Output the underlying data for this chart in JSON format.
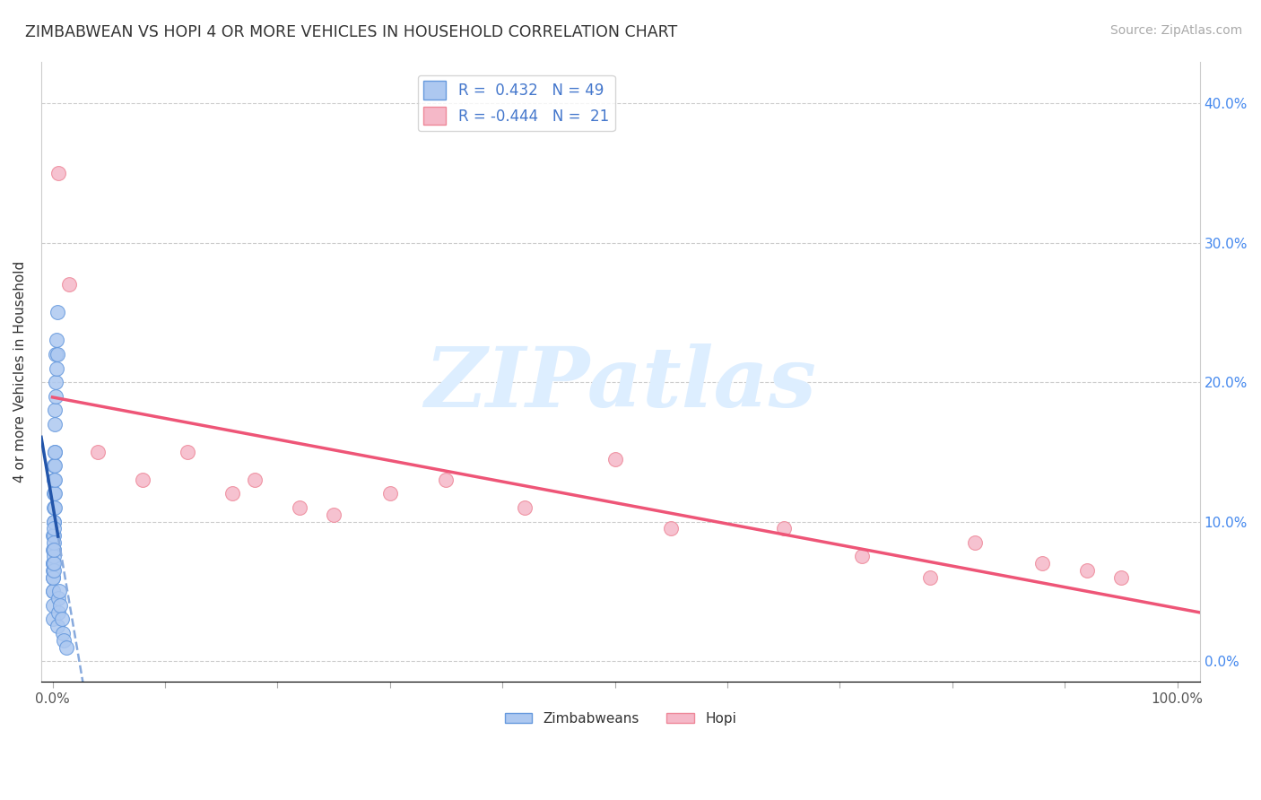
{
  "title": "ZIMBABWEAN VS HOPI 4 OR MORE VEHICLES IN HOUSEHOLD CORRELATION CHART",
  "source": "Source: ZipAtlas.com",
  "ylabel": "4 or more Vehicles in Household",
  "zimbabwean_R": 0.432,
  "zimbabwean_N": 49,
  "hopi_R": -0.444,
  "hopi_N": 21,
  "xlim": [
    -1.0,
    102.0
  ],
  "ylim": [
    -1.5,
    43.0
  ],
  "yticks": [
    0,
    10,
    20,
    30,
    40
  ],
  "background_color": "#ffffff",
  "grid_color": "#cccccc",
  "zimbabwean_color": "#adc8f0",
  "zimbabwean_edge_color": "#6699dd",
  "hopi_color": "#f5b8c8",
  "hopi_edge_color": "#ee8899",
  "zimbabwean_line_color_solid": "#2255aa",
  "zimbabwean_line_color_dashed": "#88aadd",
  "hopi_line_color": "#ee5577",
  "watermark_text": "ZIPatlas",
  "watermark_color": "#ddeeff",
  "legend_label_color": "#4477cc",
  "zimbabwean_x": [
    0.0,
    0.0,
    0.02,
    0.03,
    0.03,
    0.04,
    0.05,
    0.05,
    0.06,
    0.07,
    0.07,
    0.08,
    0.08,
    0.09,
    0.1,
    0.1,
    0.1,
    0.11,
    0.11,
    0.12,
    0.12,
    0.13,
    0.14,
    0.15,
    0.15,
    0.16,
    0.17,
    0.18,
    0.19,
    0.2,
    0.21,
    0.22,
    0.23,
    0.25,
    0.27,
    0.3,
    0.33,
    0.35,
    0.4,
    0.42,
    0.45,
    0.5,
    0.55,
    0.6,
    0.7,
    0.8,
    0.9,
    1.0,
    1.2
  ],
  "zimbabwean_y": [
    3.0,
    5.0,
    6.0,
    4.0,
    7.0,
    5.0,
    6.5,
    8.0,
    7.0,
    9.0,
    6.0,
    8.0,
    10.0,
    7.5,
    9.0,
    11.0,
    6.5,
    8.5,
    12.0,
    7.0,
    10.0,
    8.0,
    13.0,
    9.5,
    14.0,
    11.0,
    15.0,
    12.0,
    13.0,
    17.0,
    14.0,
    18.0,
    15.0,
    20.0,
    19.0,
    22.0,
    21.0,
    23.0,
    25.0,
    22.0,
    2.5,
    3.5,
    4.5,
    5.0,
    4.0,
    3.0,
    2.0,
    1.5,
    1.0
  ],
  "hopi_x": [
    0.5,
    1.5,
    4.0,
    8.0,
    12.0,
    16.0,
    18.0,
    22.0,
    25.0,
    30.0,
    35.0,
    42.0,
    50.0,
    55.0,
    65.0,
    72.0,
    78.0,
    82.0,
    88.0,
    92.0,
    95.0
  ],
  "hopi_y": [
    35.0,
    27.0,
    15.0,
    13.0,
    15.0,
    12.0,
    13.0,
    11.0,
    10.5,
    12.0,
    13.0,
    11.0,
    14.5,
    9.5,
    9.5,
    7.5,
    6.0,
    8.5,
    7.0,
    6.5,
    6.0
  ]
}
